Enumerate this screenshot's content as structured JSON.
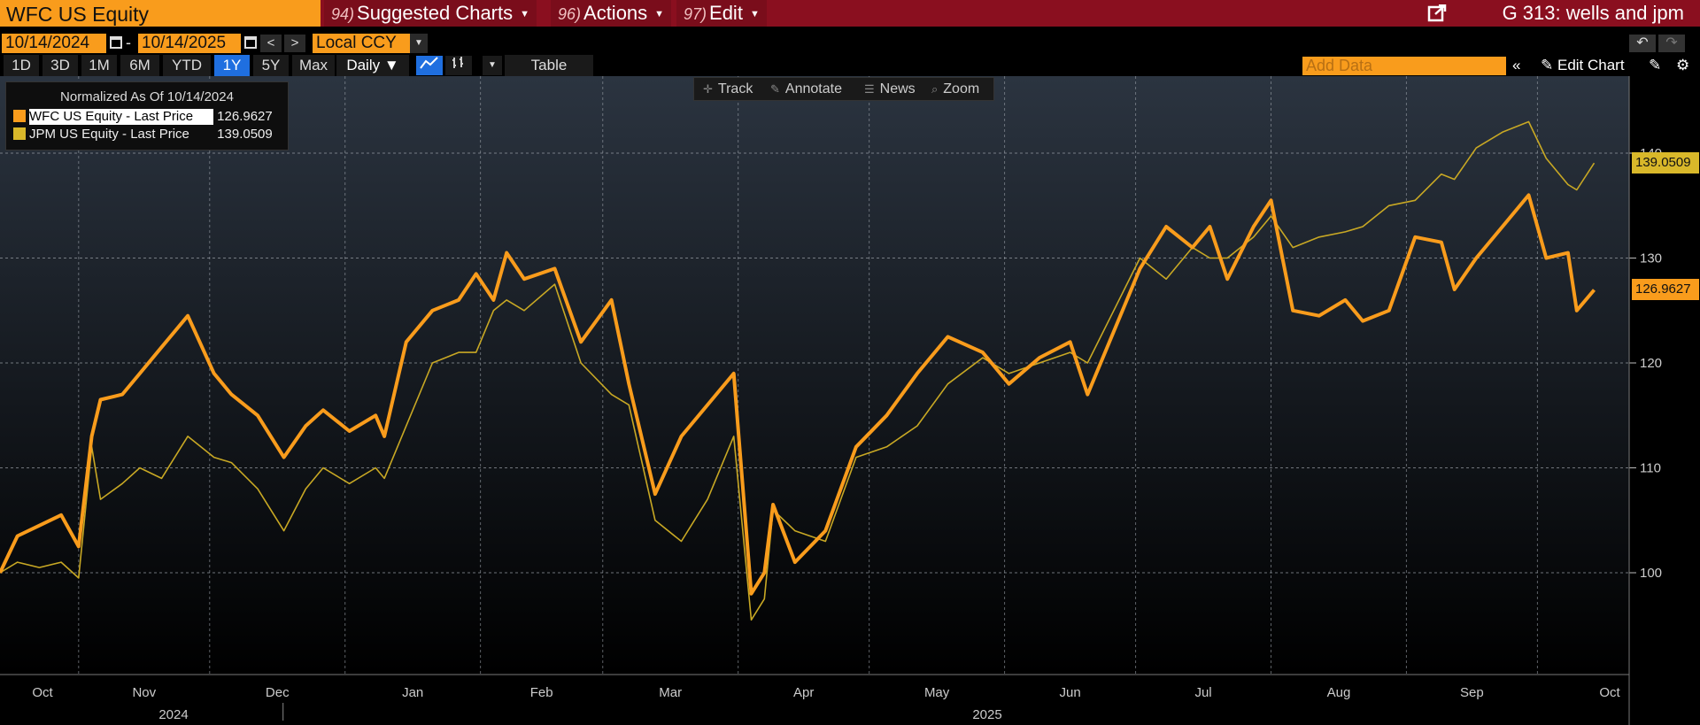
{
  "header": {
    "ticker": "WFC US Equity",
    "menus": [
      {
        "num": "94)",
        "label": "Suggested Charts"
      },
      {
        "num": "96)",
        "label": "Actions"
      },
      {
        "num": "97)",
        "label": "Edit"
      }
    ],
    "chart_title": "G 313: wells and jpm"
  },
  "date_bar": {
    "start_date": "10/14/2024",
    "separator": "-",
    "end_date": "10/14/2025",
    "prev": "<",
    "next": ">",
    "currency": "Local CCY"
  },
  "toolbar": {
    "ranges": [
      "1D",
      "3D",
      "1M",
      "6M",
      "YTD",
      "1Y",
      "5Y",
      "Max"
    ],
    "active_range": "1Y",
    "frequency": "Daily ▼",
    "table_label": "Table",
    "add_data_placeholder": "Add Data",
    "edit_chart_label": "Edit Chart"
  },
  "chart_tools": {
    "track": "Track",
    "annotate": "Annotate",
    "news": "News",
    "zoom": "Zoom"
  },
  "legend": {
    "title": "Normalized As Of 10/14/2024",
    "items": [
      {
        "label": "WFC US Equity - Last Price",
        "value": "126.9627",
        "color": "#f99c1c"
      },
      {
        "label": "JPM US Equity - Last Price",
        "value": "139.0509",
        "color": "#d9b82a"
      }
    ]
  },
  "colors": {
    "wfc": "#f99c1c",
    "jpm": "#c8a824",
    "accent": "#f99c1c",
    "topbar": "#8a0f1f",
    "active": "#1f6fe0"
  },
  "chart_data": {
    "type": "line",
    "ylim": [
      90,
      148
    ],
    "yticks": [
      100,
      110,
      120,
      130,
      140
    ],
    "x_tick_labels": [
      "Oct",
      "Nov",
      "Dec",
      "Jan",
      "Feb",
      "Mar",
      "Apr",
      "May",
      "Jun",
      "Jul",
      "Aug",
      "Sep",
      "Oct"
    ],
    "year_labels": [
      "2024",
      "2025"
    ],
    "grid": true,
    "last_value_tags": [
      "139.0509",
      "126.9627"
    ],
    "series": [
      {
        "name": "WFC US Equity - Last Price",
        "points": [
          [
            "2024-10-14",
            100
          ],
          [
            "2024-10-18",
            103.5
          ],
          [
            "2024-10-23",
            104.5
          ],
          [
            "2024-10-28",
            105.5
          ],
          [
            "2024-11-01",
            102.5
          ],
          [
            "2024-11-04",
            113
          ],
          [
            "2024-11-06",
            116.5
          ],
          [
            "2024-11-11",
            117
          ],
          [
            "2024-11-15",
            119
          ],
          [
            "2024-11-20",
            121.5
          ],
          [
            "2024-11-26",
            124.5
          ],
          [
            "2024-12-02",
            119
          ],
          [
            "2024-12-06",
            117
          ],
          [
            "2024-12-12",
            115
          ],
          [
            "2024-12-18",
            111
          ],
          [
            "2024-12-23",
            114
          ],
          [
            "2024-12-27",
            115.5
          ],
          [
            "2025-01-02",
            113.5
          ],
          [
            "2025-01-08",
            115
          ],
          [
            "2025-01-10",
            113
          ],
          [
            "2025-01-15",
            122
          ],
          [
            "2025-01-21",
            125
          ],
          [
            "2025-01-27",
            126
          ],
          [
            "2025-01-31",
            128.5
          ],
          [
            "2025-02-04",
            126
          ],
          [
            "2025-02-07",
            130.5
          ],
          [
            "2025-02-11",
            128
          ],
          [
            "2025-02-18",
            129
          ],
          [
            "2025-02-24",
            122
          ],
          [
            "2025-03-03",
            126
          ],
          [
            "2025-03-07",
            118
          ],
          [
            "2025-03-13",
            107.5
          ],
          [
            "2025-03-19",
            113
          ],
          [
            "2025-03-25",
            116
          ],
          [
            "2025-03-31",
            119
          ],
          [
            "2025-04-04",
            98
          ],
          [
            "2025-04-07",
            100
          ],
          [
            "2025-04-09",
            106.5
          ],
          [
            "2025-04-14",
            101
          ],
          [
            "2025-04-21",
            104
          ],
          [
            "2025-04-28",
            112
          ],
          [
            "2025-05-05",
            115
          ],
          [
            "2025-05-12",
            119
          ],
          [
            "2025-05-19",
            122.5
          ],
          [
            "2025-05-27",
            121
          ],
          [
            "2025-06-02",
            118
          ],
          [
            "2025-06-09",
            120.5
          ],
          [
            "2025-06-16",
            122
          ],
          [
            "2025-06-20",
            117
          ],
          [
            "2025-06-26",
            123
          ],
          [
            "2025-07-02",
            129
          ],
          [
            "2025-07-08",
            133
          ],
          [
            "2025-07-14",
            131
          ],
          [
            "2025-07-18",
            133
          ],
          [
            "2025-07-22",
            128
          ],
          [
            "2025-07-28",
            133
          ],
          [
            "2025-08-01",
            135.5
          ],
          [
            "2025-08-06",
            125
          ],
          [
            "2025-08-12",
            124.5
          ],
          [
            "2025-08-18",
            126
          ],
          [
            "2025-08-22",
            124
          ],
          [
            "2025-08-28",
            125
          ],
          [
            "2025-09-03",
            132
          ],
          [
            "2025-09-09",
            131.5
          ],
          [
            "2025-09-12",
            127
          ],
          [
            "2025-09-17",
            130
          ],
          [
            "2025-09-23",
            133
          ],
          [
            "2025-09-29",
            136
          ],
          [
            "2025-10-03",
            130
          ],
          [
            "2025-10-08",
            130.5
          ],
          [
            "2025-10-10",
            125
          ],
          [
            "2025-10-14",
            126.9627
          ]
        ]
      },
      {
        "name": "JPM US Equity - Last Price",
        "points": [
          [
            "2024-10-14",
            100
          ],
          [
            "2024-10-18",
            101
          ],
          [
            "2024-10-23",
            100.5
          ],
          [
            "2024-10-28",
            101
          ],
          [
            "2024-11-01",
            99.5
          ],
          [
            "2024-11-04",
            112
          ],
          [
            "2024-11-06",
            107
          ],
          [
            "2024-11-11",
            108.5
          ],
          [
            "2024-11-15",
            110
          ],
          [
            "2024-11-20",
            109
          ],
          [
            "2024-11-26",
            113
          ],
          [
            "2024-12-02",
            111
          ],
          [
            "2024-12-06",
            110.5
          ],
          [
            "2024-12-12",
            108
          ],
          [
            "2024-12-18",
            104
          ],
          [
            "2024-12-23",
            108
          ],
          [
            "2024-12-27",
            110
          ],
          [
            "2025-01-02",
            108.5
          ],
          [
            "2025-01-08",
            110
          ],
          [
            "2025-01-10",
            109
          ],
          [
            "2025-01-15",
            114
          ],
          [
            "2025-01-21",
            120
          ],
          [
            "2025-01-27",
            121
          ],
          [
            "2025-01-31",
            121
          ],
          [
            "2025-02-04",
            125
          ],
          [
            "2025-02-07",
            126
          ],
          [
            "2025-02-11",
            125
          ],
          [
            "2025-02-18",
            127.5
          ],
          [
            "2025-02-24",
            120
          ],
          [
            "2025-03-03",
            117
          ],
          [
            "2025-03-07",
            116
          ],
          [
            "2025-03-13",
            105
          ],
          [
            "2025-03-19",
            103
          ],
          [
            "2025-03-25",
            107
          ],
          [
            "2025-03-31",
            113
          ],
          [
            "2025-04-04",
            95.5
          ],
          [
            "2025-04-07",
            97.5
          ],
          [
            "2025-04-09",
            106
          ],
          [
            "2025-04-14",
            104
          ],
          [
            "2025-04-21",
            103
          ],
          [
            "2025-04-28",
            111
          ],
          [
            "2025-05-05",
            112
          ],
          [
            "2025-05-12",
            114
          ],
          [
            "2025-05-19",
            118
          ],
          [
            "2025-05-27",
            120.5
          ],
          [
            "2025-06-02",
            119
          ],
          [
            "2025-06-09",
            120
          ],
          [
            "2025-06-16",
            121
          ],
          [
            "2025-06-20",
            120
          ],
          [
            "2025-06-26",
            125
          ],
          [
            "2025-07-02",
            130
          ],
          [
            "2025-07-08",
            128
          ],
          [
            "2025-07-14",
            131
          ],
          [
            "2025-07-18",
            130
          ],
          [
            "2025-07-22",
            130
          ],
          [
            "2025-07-28",
            132
          ],
          [
            "2025-08-01",
            134
          ],
          [
            "2025-08-06",
            131
          ],
          [
            "2025-08-12",
            132
          ],
          [
            "2025-08-18",
            132.5
          ],
          [
            "2025-08-22",
            133
          ],
          [
            "2025-08-28",
            135
          ],
          [
            "2025-09-03",
            135.5
          ],
          [
            "2025-09-09",
            138
          ],
          [
            "2025-09-12",
            137.5
          ],
          [
            "2025-09-17",
            140.5
          ],
          [
            "2025-09-23",
            142
          ],
          [
            "2025-09-29",
            143
          ],
          [
            "2025-10-03",
            139.5
          ],
          [
            "2025-10-08",
            137
          ],
          [
            "2025-10-10",
            136.5
          ],
          [
            "2025-10-14",
            139.0509
          ]
        ]
      }
    ]
  }
}
